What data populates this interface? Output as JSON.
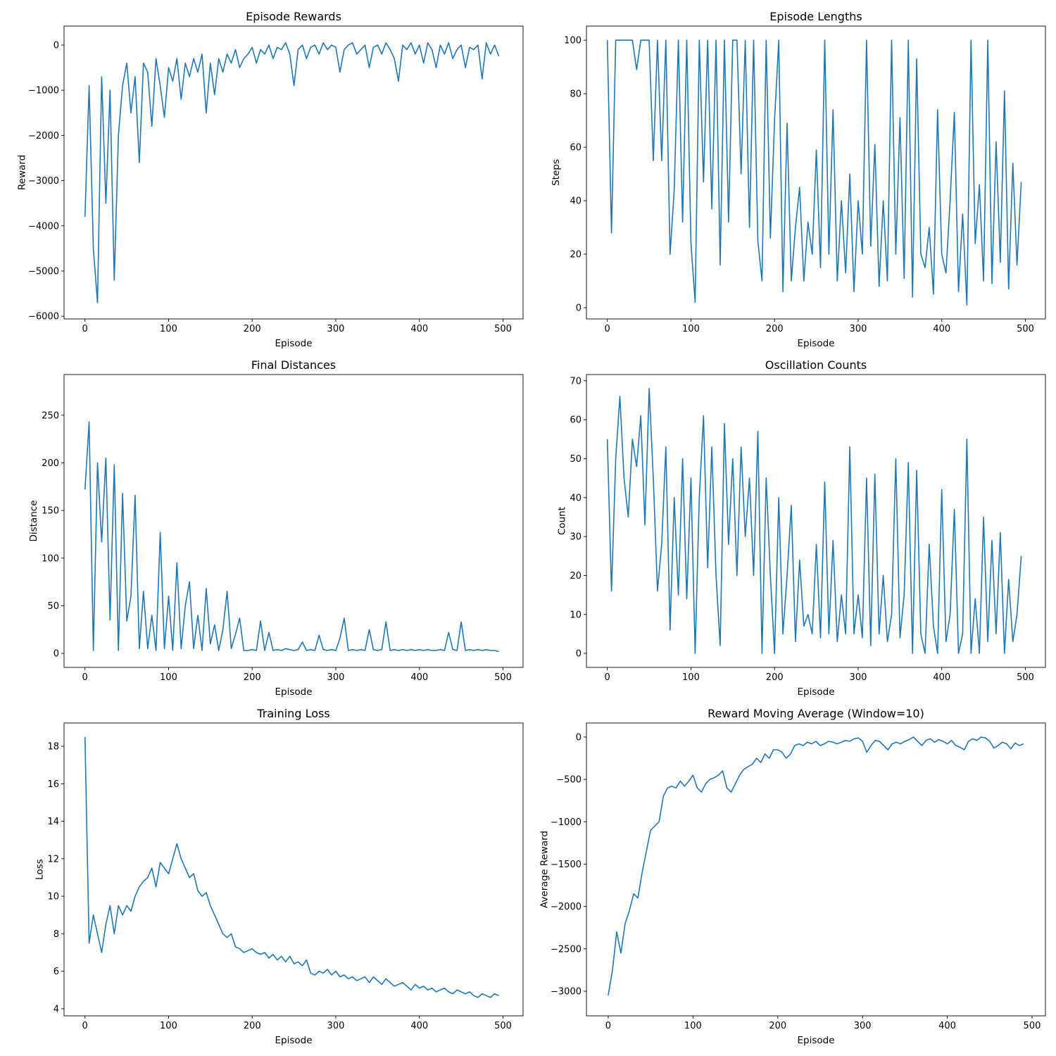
{
  "episodes": [
    0,
    5,
    10,
    15,
    20,
    25,
    30,
    35,
    40,
    45,
    50,
    55,
    60,
    65,
    70,
    75,
    80,
    85,
    90,
    95,
    100,
    105,
    110,
    115,
    120,
    125,
    130,
    135,
    140,
    145,
    150,
    155,
    160,
    165,
    170,
    175,
    180,
    185,
    190,
    195,
    200,
    205,
    210,
    215,
    220,
    225,
    230,
    235,
    240,
    245,
    250,
    255,
    260,
    265,
    270,
    275,
    280,
    285,
    290,
    295,
    300,
    305,
    310,
    315,
    320,
    325,
    330,
    335,
    340,
    345,
    350,
    355,
    360,
    365,
    370,
    375,
    380,
    385,
    390,
    395,
    400,
    405,
    410,
    415,
    420,
    425,
    430,
    435,
    440,
    445,
    450,
    455,
    460,
    465,
    470,
    475,
    480,
    485,
    490,
    495
  ],
  "line_color": "#1f77b4",
  "chart_data": [
    {
      "type": "line",
      "title": "Episode Rewards",
      "xlabel": "Episode",
      "ylabel": "Reward",
      "xlim": [
        -25,
        524
      ],
      "ylim": [
        -6060,
        420
      ],
      "xticks": [
        0,
        100,
        200,
        300,
        400,
        500
      ],
      "yticks": [
        -6000,
        -5000,
        -4000,
        -3000,
        -2000,
        -1000,
        0
      ],
      "values": [
        -3800,
        -900,
        -4500,
        -5700,
        -700,
        -3500,
        -1000,
        -5200,
        -2000,
        -900,
        -400,
        -1500,
        -700,
        -2600,
        -400,
        -600,
        -1800,
        -300,
        -900,
        -1600,
        -500,
        -800,
        -300,
        -1200,
        -400,
        -700,
        -300,
        -600,
        -200,
        -1500,
        -400,
        -1100,
        -300,
        -600,
        -200,
        -400,
        -100,
        -500,
        -300,
        -200,
        -50,
        -400,
        -100,
        -200,
        0,
        -300,
        -50,
        -100,
        50,
        -200,
        -900,
        -100,
        0,
        -300,
        -50,
        0,
        -200,
        50,
        -100,
        0,
        -50,
        -600,
        -100,
        0,
        50,
        -200,
        -100,
        0,
        -500,
        -50,
        0,
        -200,
        50,
        -100,
        -300,
        -800,
        0,
        -100,
        50,
        -200,
        0,
        -400,
        50,
        -100,
        -500,
        0,
        -200,
        50,
        -300,
        -100,
        0,
        -500,
        -50,
        -100,
        0,
        -750,
        50,
        -200,
        0,
        -250
      ]
    },
    {
      "type": "line",
      "title": "Episode Lengths",
      "xlabel": "Episode",
      "ylabel": "Steps",
      "xlim": [
        -25,
        524
      ],
      "ylim": [
        -4.2,
        105.3
      ],
      "xticks": [
        0,
        100,
        200,
        300,
        400,
        500
      ],
      "yticks": [
        0,
        20,
        40,
        60,
        80,
        100
      ],
      "values": [
        100,
        28,
        100,
        100,
        100,
        100,
        100,
        89,
        100,
        100,
        100,
        55,
        100,
        55,
        100,
        20,
        44,
        100,
        32,
        100,
        24,
        2,
        100,
        47,
        100,
        37,
        100,
        16,
        100,
        32,
        100,
        100,
        50,
        100,
        30,
        100,
        25,
        10,
        100,
        26,
        70,
        100,
        6,
        69,
        10,
        30,
        45,
        10,
        32,
        20,
        59,
        15,
        100,
        20,
        74,
        10,
        40,
        13,
        50,
        6,
        40,
        20,
        100,
        23,
        61,
        8,
        40,
        10,
        100,
        20,
        71,
        11,
        100,
        4,
        93,
        20,
        15,
        30,
        5,
        74,
        20,
        13,
        40,
        73,
        6,
        35,
        1,
        100,
        24,
        46,
        10,
        100,
        9,
        62,
        17,
        81,
        7,
        54,
        16,
        47
      ]
    },
    {
      "type": "line",
      "title": "Final Distances",
      "xlabel": "Episode",
      "ylabel": "Distance",
      "xlim": [
        -25,
        524
      ],
      "ylim": [
        -14.7,
        292.7
      ],
      "xticks": [
        0,
        100,
        200,
        300,
        400,
        500
      ],
      "yticks": [
        0,
        50,
        100,
        150,
        200,
        250
      ],
      "values": [
        172,
        243,
        3,
        200,
        117,
        205,
        35,
        198,
        3,
        168,
        34,
        60,
        166,
        5,
        65,
        5,
        40,
        3,
        127,
        5,
        60,
        3,
        95,
        5,
        50,
        75,
        5,
        40,
        3,
        68,
        10,
        30,
        3,
        25,
        65,
        5,
        20,
        37,
        3,
        3,
        4,
        3,
        34,
        3,
        22,
        3,
        4,
        3,
        5,
        4,
        3,
        4,
        12,
        3,
        4,
        3,
        19,
        4,
        3,
        4,
        3,
        16,
        37,
        3,
        4,
        3,
        4,
        3,
        25,
        4,
        3,
        4,
        33,
        3,
        4,
        3,
        4,
        3,
        4,
        3,
        4,
        3,
        4,
        3,
        3,
        4,
        3,
        22,
        4,
        3,
        33,
        3,
        4,
        3,
        4,
        3,
        4,
        3,
        3,
        2
      ]
    },
    {
      "type": "line",
      "title": "Oscillation Counts",
      "xlabel": "Episode",
      "ylabel": "Count",
      "xlim": [
        -25,
        524
      ],
      "ylim": [
        -3.6,
        71.6
      ],
      "xticks": [
        0,
        100,
        200,
        300,
        400,
        500
      ],
      "yticks": [
        0,
        10,
        20,
        30,
        40,
        50,
        60,
        70
      ],
      "values": [
        55,
        16,
        50,
        66,
        45,
        35,
        55,
        48,
        61,
        33,
        68,
        45,
        16,
        28,
        53,
        6,
        40,
        15,
        50,
        14,
        45,
        0,
        40,
        61,
        22,
        53,
        20,
        2,
        59,
        28,
        50,
        20,
        53,
        30,
        45,
        20,
        57,
        0,
        45,
        20,
        0,
        40,
        5,
        20,
        38,
        3,
        24,
        7,
        10,
        5,
        28,
        4,
        44,
        5,
        29,
        3,
        15,
        5,
        53,
        5,
        15,
        4,
        45,
        2,
        46,
        5,
        20,
        3,
        10,
        50,
        4,
        15,
        49,
        0,
        47,
        5,
        0,
        28,
        7,
        0,
        42,
        3,
        10,
        37,
        0,
        5,
        55,
        0,
        14,
        0,
        35,
        3,
        29,
        5,
        31,
        0,
        19,
        3,
        10,
        25
      ]
    },
    {
      "type": "line",
      "title": "Training Loss",
      "xlabel": "Episode",
      "ylabel": "Loss",
      "xlim": [
        -25,
        524
      ],
      "ylim": [
        3.62,
        19.24
      ],
      "xticks": [
        0,
        100,
        200,
        300,
        400,
        500
      ],
      "yticks": [
        4,
        6,
        8,
        10,
        12,
        14,
        16,
        18
      ],
      "values": [
        18.5,
        7.5,
        9.0,
        8.0,
        7.0,
        8.5,
        9.5,
        8.0,
        9.5,
        9.0,
        9.5,
        9.2,
        10.0,
        10.5,
        10.8,
        11.0,
        11.5,
        10.5,
        11.8,
        11.5,
        11.2,
        12.0,
        12.8,
        12.0,
        11.5,
        11.0,
        11.2,
        10.3,
        10.0,
        10.2,
        9.5,
        9.0,
        8.5,
        8.0,
        7.8,
        8.0,
        7.3,
        7.2,
        7.0,
        7.1,
        7.2,
        7.0,
        6.9,
        7.0,
        6.7,
        6.9,
        6.6,
        6.8,
        6.5,
        6.8,
        6.4,
        6.5,
        6.3,
        6.6,
        5.9,
        5.8,
        6.0,
        5.9,
        6.1,
        5.8,
        6.0,
        5.7,
        5.8,
        5.6,
        5.7,
        5.5,
        5.6,
        5.7,
        5.4,
        5.7,
        5.5,
        5.3,
        5.6,
        5.4,
        5.2,
        5.3,
        5.4,
        5.2,
        5.0,
        5.3,
        5.1,
        5.2,
        5.0,
        5.1,
        4.9,
        5.0,
        5.1,
        4.9,
        4.8,
        5.0,
        4.9,
        4.8,
        4.9,
        4.7,
        4.6,
        4.8,
        4.7,
        4.6,
        4.8,
        4.7
      ]
    },
    {
      "type": "line",
      "title": "Reward Moving Average (Window=10)",
      "xlabel": "Episode",
      "ylabel": "Average Reward",
      "xlim": [
        -25.7,
        515.8
      ],
      "ylim": [
        -3291,
        166
      ],
      "xticks": [
        0,
        100,
        200,
        300,
        400,
        500
      ],
      "yticks": [
        -3000,
        -2500,
        -2000,
        -1500,
        -1000,
        -500,
        0
      ],
      "values": [
        -3050,
        -2750,
        -2300,
        -2550,
        -2200,
        -2050,
        -1850,
        -1900,
        -1600,
        -1350,
        -1100,
        -1050,
        -1000,
        -700,
        -600,
        -580,
        -600,
        -520,
        -580,
        -520,
        -450,
        -600,
        -650,
        -550,
        -500,
        -480,
        -450,
        -400,
        -600,
        -650,
        -550,
        -450,
        -380,
        -350,
        -320,
        -250,
        -300,
        -200,
        -250,
        -150,
        -150,
        -180,
        -250,
        -200,
        -100,
        -80,
        -100,
        -60,
        -80,
        -50,
        -100,
        -80,
        -50,
        -60,
        -80,
        -60,
        -40,
        -50,
        -20,
        -10,
        -50,
        -180,
        -100,
        -40,
        -50,
        -100,
        -150,
        -80,
        -60,
        -80,
        -50,
        -30,
        0,
        -50,
        -100,
        -40,
        -20,
        -60,
        -30,
        -50,
        -80,
        -40,
        -100,
        -120,
        -150,
        -50,
        -20,
        -40,
        0,
        -10,
        -50,
        -130,
        -100,
        -60,
        -80,
        -140,
        -70,
        -100,
        -80
      ]
    }
  ]
}
